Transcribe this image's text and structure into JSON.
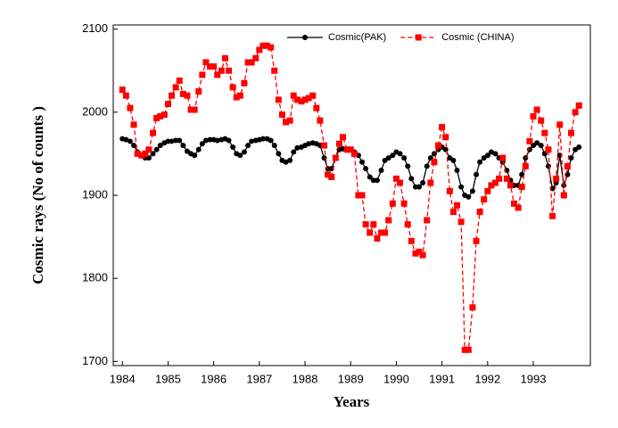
{
  "chart_data": {
    "type": "line",
    "x_label": "Years",
    "y_label": "Cosmic rays (No of counts )",
    "x": [
      1984,
      1984.08,
      1984.17,
      1984.25,
      1984.33,
      1984.42,
      1984.5,
      1984.58,
      1984.67,
      1984.75,
      1984.83,
      1984.92,
      1985,
      1985.08,
      1985.17,
      1985.25,
      1985.33,
      1985.42,
      1985.5,
      1985.58,
      1985.67,
      1985.75,
      1985.83,
      1985.92,
      1986,
      1986.08,
      1986.17,
      1986.25,
      1986.33,
      1986.42,
      1986.5,
      1986.58,
      1986.67,
      1986.75,
      1986.83,
      1986.92,
      1987,
      1987.08,
      1987.17,
      1987.25,
      1987.33,
      1987.42,
      1987.5,
      1987.58,
      1987.67,
      1987.75,
      1987.83,
      1987.92,
      1988,
      1988.08,
      1988.17,
      1988.25,
      1988.33,
      1988.42,
      1988.5,
      1988.58,
      1988.67,
      1988.75,
      1988.83,
      1988.92,
      1989,
      1989.08,
      1989.17,
      1989.25,
      1989.33,
      1989.42,
      1989.5,
      1989.58,
      1989.67,
      1989.75,
      1989.83,
      1989.92,
      1990,
      1990.08,
      1990.17,
      1990.25,
      1990.33,
      1990.42,
      1990.5,
      1990.58,
      1990.67,
      1990.75,
      1990.83,
      1990.92,
      1991,
      1991.08,
      1991.17,
      1991.25,
      1991.33,
      1991.42,
      1991.5,
      1991.58,
      1991.67,
      1991.75,
      1991.83,
      1991.92,
      1992,
      1992.08,
      1992.17,
      1992.25,
      1992.33,
      1992.42,
      1992.5,
      1992.58,
      1992.67,
      1992.75,
      1992.83,
      1992.92,
      1993,
      1993.08,
      1993.17,
      1993.25,
      1993.33,
      1993.42,
      1993.5,
      1993.58,
      1993.67,
      1993.75,
      1993.83,
      1993.92,
      1994
    ],
    "series": [
      {
        "name": "Cosmic(PAK)",
        "color": "#000000",
        "marker": "circle",
        "dashed": false,
        "values": [
          1968,
          1967,
          1965,
          1960,
          1952,
          1948,
          1945,
          1945,
          1950,
          1955,
          1960,
          1963,
          1965,
          1965,
          1966,
          1966,
          1960,
          1953,
          1950,
          1948,
          1955,
          1962,
          1966,
          1967,
          1967,
          1966,
          1967,
          1968,
          1966,
          1958,
          1950,
          1948,
          1952,
          1960,
          1965,
          1966,
          1967,
          1968,
          1968,
          1966,
          1960,
          1950,
          1942,
          1940,
          1942,
          1952,
          1957,
          1958,
          1960,
          1962,
          1963,
          1962,
          1960,
          1945,
          1932,
          1932,
          1945,
          1955,
          1956,
          1955,
          1955,
          1952,
          1948,
          1940,
          1932,
          1922,
          1918,
          1918,
          1930,
          1942,
          1945,
          1948,
          1952,
          1950,
          1945,
          1935,
          1920,
          1910,
          1910,
          1915,
          1935,
          1945,
          1950,
          1955,
          1958,
          1955,
          1945,
          1942,
          1930,
          1910,
          1900,
          1898,
          1905,
          1925,
          1940,
          1945,
          1948,
          1952,
          1950,
          1945,
          1940,
          1930,
          1918,
          1912,
          1912,
          1925,
          1945,
          1955,
          1960,
          1963,
          1960,
          1950,
          1935,
          1908,
          1915,
          1948,
          1912,
          1925,
          1945,
          1955,
          1958
        ]
      },
      {
        "name": "Cosmic (CHINA)",
        "color": "#ff0000",
        "marker": "square",
        "dashed": true,
        "values": [
          2027,
          2020,
          2005,
          1985,
          1950,
          1948,
          1950,
          1955,
          1975,
          1993,
          1995,
          1997,
          2010,
          2020,
          2030,
          2038,
          2022,
          2020,
          2003,
          2003,
          2025,
          2045,
          2060,
          2055,
          2055,
          2045,
          2050,
          2065,
          2050,
          2030,
          2018,
          2020,
          2035,
          2060,
          2060,
          2065,
          2075,
          2080,
          2080,
          2078,
          2050,
          2015,
          1997,
          1988,
          1990,
          2020,
          2015,
          2013,
          2015,
          2017,
          2020,
          2005,
          1990,
          1960,
          1925,
          1922,
          1945,
          1962,
          1970,
          1955,
          1955,
          1950,
          1900,
          1900,
          1865,
          1855,
          1865,
          1848,
          1855,
          1855,
          1870,
          1890,
          1920,
          1915,
          1890,
          1865,
          1845,
          1830,
          1832,
          1828,
          1870,
          1915,
          1940,
          1960,
          1982,
          1970,
          1905,
          1880,
          1888,
          1868,
          1714,
          1714,
          1765,
          1845,
          1880,
          1895,
          1905,
          1912,
          1915,
          1920,
          1945,
          1920,
          1912,
          1890,
          1885,
          1910,
          1935,
          1965,
          1995,
          2003,
          1990,
          1975,
          1955,
          1875,
          1920,
          1985,
          1900,
          1935,
          1975,
          2000,
          2008
        ]
      }
    ],
    "xlim": [
      1983.8,
      1994.25
    ],
    "xticks": [
      1984,
      1985,
      1986,
      1987,
      1988,
      1989,
      1990,
      1991,
      1992,
      1993
    ],
    "ylim": [
      1695,
      2105
    ],
    "yticks": [
      1700,
      1800,
      1900,
      2000,
      2100
    ],
    "legend": "upper right",
    "grid": false
  }
}
